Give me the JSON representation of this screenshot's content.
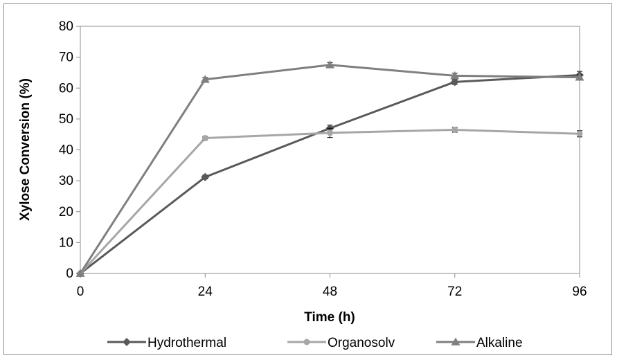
{
  "chart_data": {
    "type": "line",
    "xlabel": "Time (h)",
    "ylabel": "Xylose Conversion (%)",
    "x": [
      0,
      24,
      48,
      72,
      96
    ],
    "xticks": [
      "0",
      "24",
      "48",
      "72",
      "96"
    ],
    "yticks": [
      "0",
      "10",
      "20",
      "30",
      "40",
      "50",
      "60",
      "70",
      "80"
    ],
    "xlim": [
      0,
      96
    ],
    "ylim": [
      0,
      80
    ],
    "grid": false,
    "legend_position": "bottom",
    "series": [
      {
        "name": "Hydrothermal",
        "marker": "diamond",
        "color": "#595959",
        "values": [
          0,
          31.2,
          47.0,
          62.0,
          64.2
        ],
        "errors": [
          0,
          0.6,
          1.0,
          0.8,
          1.2
        ]
      },
      {
        "name": "Organosolv",
        "marker": "circle",
        "color": "#a6a6a6",
        "values": [
          0,
          43.8,
          45.5,
          46.5,
          45.2
        ],
        "errors": [
          0,
          0.6,
          1.5,
          0.8,
          1.0
        ]
      },
      {
        "name": "Alkaline",
        "marker": "triangle",
        "color": "#7f7f7f",
        "values": [
          0,
          62.8,
          67.5,
          64.0,
          63.5
        ],
        "errors": [
          0,
          0.6,
          0.8,
          0.8,
          0.8
        ]
      }
    ]
  }
}
